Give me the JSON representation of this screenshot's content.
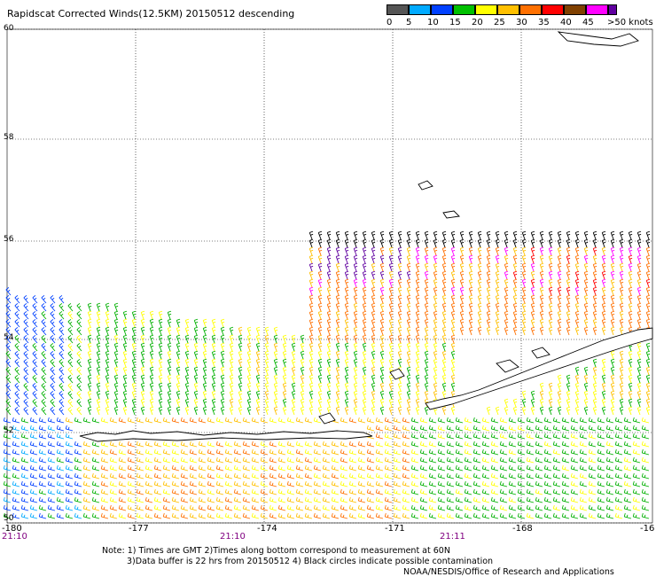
{
  "title": "Rapidscat Corrected Winds(12.5KM) 20150512 descending",
  "legend": {
    "labels": [
      "0",
      "5",
      "10",
      "15",
      "20",
      "25",
      "30",
      "35",
      "40",
      "45",
      ">50 knots"
    ],
    "colors": [
      "#555555",
      "#00aaff",
      "#0040ff",
      "#00c000",
      "#ffff00",
      "#ffc000",
      "#ff7000",
      "#ff0000",
      "#804000",
      "#ff00ff",
      "#6000a0"
    ]
  },
  "latitude_labels": [
    "60",
    "58",
    "56",
    "54",
    "52",
    "50"
  ],
  "longitude_labels": [
    "-180",
    "-177",
    "-174",
    "-171",
    "-168",
    "-16"
  ],
  "time_labels": [
    "21:10",
    "21:10",
    "21:11"
  ],
  "notes": {
    "line1": "Note: 1) Times are GMT 2)Times along bottom correspond to measurement at 60N",
    "line2": "3)Data buffer is 22 hrs from 20150512 4) Black circles indicate possible contamination",
    "line3": "NOAA/NESDIS/Office of Research and Applications"
  }
}
